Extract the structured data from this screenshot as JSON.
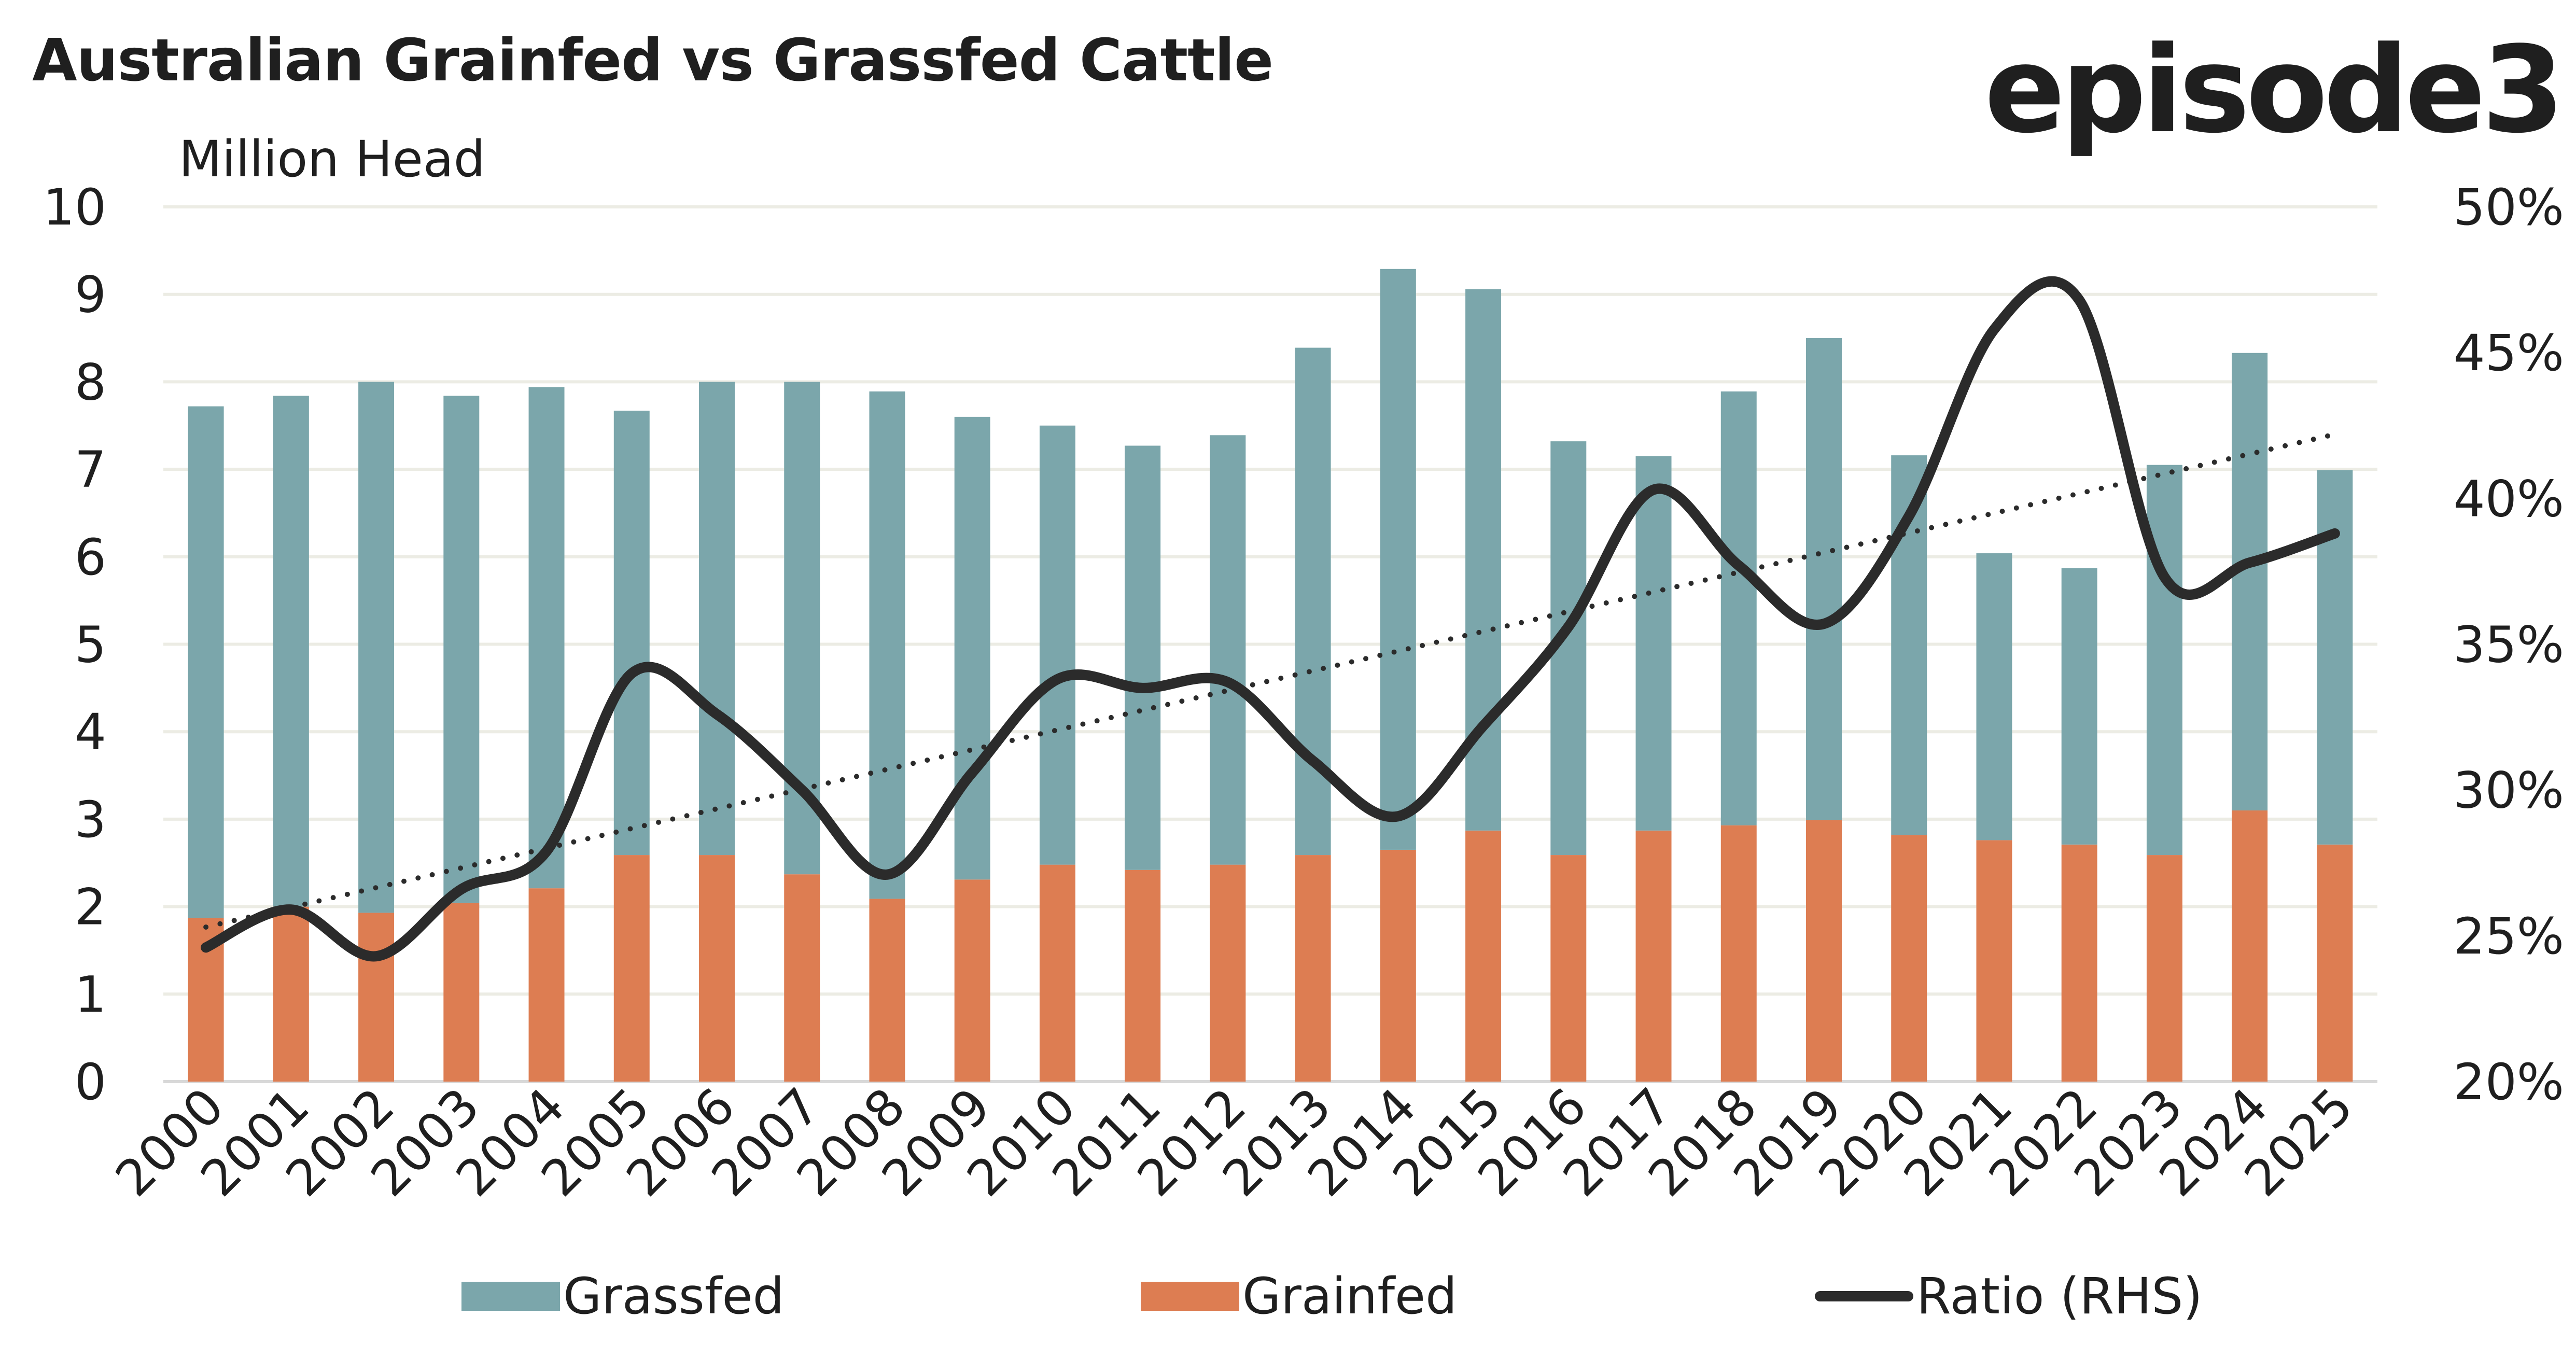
{
  "title": "Australian Grainfed vs Grassfed Cattle",
  "logo": "episode3",
  "colors": {
    "grassfed": "#7ba6ab",
    "grainfed": "#dd7d52",
    "ratio": "#2b2b2b",
    "grid": "#ecece4"
  },
  "chart_data": {
    "type": "bar",
    "subtype": "stacked bar with line on secondary axis",
    "title": "Australian Grainfed vs Grassfed Cattle",
    "ylabel": "Million Head",
    "ylim": [
      0,
      10
    ],
    "yticks": [
      "0",
      "1",
      "2",
      "3",
      "4",
      "5",
      "6",
      "7",
      "8",
      "9",
      "10"
    ],
    "y2lim": [
      20,
      50
    ],
    "y2ticks": [
      "20%",
      "25%",
      "30%",
      "35%",
      "40%",
      "45%",
      "50%"
    ],
    "categories": [
      "2000",
      "2001",
      "2002",
      "2003",
      "2004",
      "2005",
      "2006",
      "2007",
      "2008",
      "2009",
      "2010",
      "2011",
      "2012",
      "2013",
      "2014",
      "2015",
      "2016",
      "2017",
      "2018",
      "2019",
      "2020",
      "2021",
      "2022",
      "2023",
      "2024",
      "2025"
    ],
    "series": [
      {
        "name": "Grainfed",
        "type": "bar",
        "values": [
          1.87,
          2.0,
          1.93,
          2.04,
          2.21,
          2.59,
          2.59,
          2.37,
          2.09,
          2.31,
          2.48,
          2.42,
          2.48,
          2.59,
          2.65,
          2.87,
          2.59,
          2.87,
          2.93,
          2.99,
          2.82,
          2.76,
          2.71,
          2.59,
          3.1,
          2.71
        ]
      },
      {
        "name": "Grassfed",
        "type": "bar",
        "values": [
          5.85,
          5.84,
          6.07,
          5.8,
          5.73,
          5.08,
          5.41,
          5.63,
          5.8,
          5.29,
          5.02,
          4.85,
          4.91,
          5.8,
          6.64,
          6.19,
          4.73,
          4.28,
          4.96,
          5.51,
          4.34,
          3.28,
          3.16,
          4.46,
          5.23,
          4.28
        ]
      },
      {
        "name": "Ratio (RHS)",
        "type": "line",
        "axis": "right",
        "values": [
          24.6,
          25.9,
          24.3,
          26.6,
          27.9,
          34.0,
          32.6,
          30.0,
          27.1,
          30.6,
          33.8,
          33.5,
          33.7,
          31.0,
          29.1,
          32.2,
          35.6,
          40.3,
          37.7,
          35.7,
          39.4,
          45.8,
          46.8,
          37.3,
          37.8,
          38.8
        ]
      },
      {
        "name": "Ratio trend",
        "type": "line",
        "axis": "right",
        "style": "dotted",
        "values_linear_from_to": [
          25.3,
          42.2
        ]
      }
    ],
    "legend": [
      "Grassfed",
      "Grainfed",
      "Ratio (RHS)"
    ],
    "legend_position": "bottom",
    "grid": true
  }
}
